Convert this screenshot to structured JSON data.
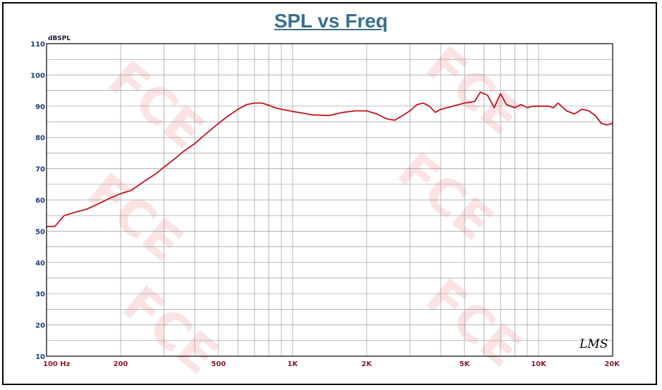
{
  "chart_data": {
    "type": "line",
    "title": "SPL vs Freq",
    "ylabel": "dBSPL",
    "x_scale": "log",
    "xlim": [
      100,
      20000
    ],
    "ylim": [
      10,
      110
    ],
    "grid": true,
    "x_ticks": [
      {
        "value": 100,
        "label": "100 Hz"
      },
      {
        "value": 200,
        "label": "200"
      },
      {
        "value": 500,
        "label": "500"
      },
      {
        "value": 1000,
        "label": "1K"
      },
      {
        "value": 2000,
        "label": "2K"
      },
      {
        "value": 5000,
        "label": "5K"
      },
      {
        "value": 10000,
        "label": "10K"
      },
      {
        "value": 20000,
        "label": "20K"
      }
    ],
    "y_ticks": [
      10,
      20,
      30,
      40,
      50,
      60,
      70,
      80,
      90,
      100,
      110
    ],
    "series": [
      {
        "color": "#c0141e",
        "x": [
          100,
          108,
          118,
          130,
          145,
          160,
          180,
          200,
          220,
          250,
          280,
          300,
          330,
          360,
          400,
          450,
          500,
          550,
          600,
          650,
          700,
          750,
          800,
          850,
          900,
          1000,
          1100,
          1200,
          1400,
          1600,
          1800,
          2000,
          2200,
          2400,
          2600,
          2800,
          3000,
          3200,
          3400,
          3600,
          3800,
          4000,
          4500,
          5000,
          5500,
          5800,
          6200,
          6600,
          7000,
          7400,
          8000,
          8500,
          9000,
          9500,
          10000,
          11000,
          11500,
          12000,
          13000,
          14000,
          15000,
          16000,
          17000,
          18000,
          19000,
          20000
        ],
        "y": [
          51.5,
          51.5,
          55,
          56,
          57,
          58.5,
          60.5,
          62,
          63,
          66,
          68.5,
          70.5,
          73,
          75.5,
          78,
          81.5,
          84.5,
          87,
          89,
          90.5,
          91,
          91,
          90.3,
          89.5,
          89,
          88.3,
          87.8,
          87.2,
          87,
          88,
          88.5,
          88.5,
          87.5,
          86,
          85.5,
          87,
          88.5,
          90.5,
          91,
          90,
          88,
          89,
          90,
          91,
          91.5,
          94.5,
          93.5,
          89.5,
          94,
          90.5,
          89.5,
          90.5,
          89.5,
          90,
          90,
          90,
          89.5,
          91,
          88.5,
          87.5,
          89,
          88.5,
          87,
          84.5,
          84,
          84.5
        ]
      }
    ]
  },
  "signature": "LMS"
}
